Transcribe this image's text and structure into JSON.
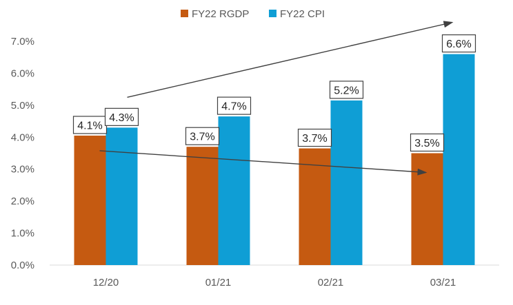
{
  "chart_data": {
    "type": "bar",
    "categories": [
      "12/20",
      "01/21",
      "02/21",
      "03/21"
    ],
    "series": [
      {
        "name": "FY22 RGDP",
        "color": "#C55A11",
        "values": [
          4.05,
          3.7,
          3.65,
          3.5
        ],
        "labels": [
          "4.1%",
          "3.7%",
          "3.7%",
          "3.5%"
        ]
      },
      {
        "name": "FY22 CPI",
        "color": "#0F9ED5",
        "values": [
          4.3,
          4.65,
          5.15,
          6.6
        ],
        "labels": [
          "4.3%",
          "4.7%",
          "5.2%",
          "6.6%"
        ]
      }
    ],
    "ylim": [
      0,
      7
    ],
    "yticks": [
      "0.0%",
      "1.0%",
      "2.0%",
      "3.0%",
      "4.0%",
      "5.0%",
      "6.0%",
      "7.0%"
    ],
    "legend_position": "top",
    "grid": false,
    "annotations": [
      {
        "type": "arrow",
        "series": "FY22 CPI",
        "direction": "up"
      },
      {
        "type": "arrow",
        "series": "FY22 RGDP",
        "direction": "down"
      }
    ]
  }
}
